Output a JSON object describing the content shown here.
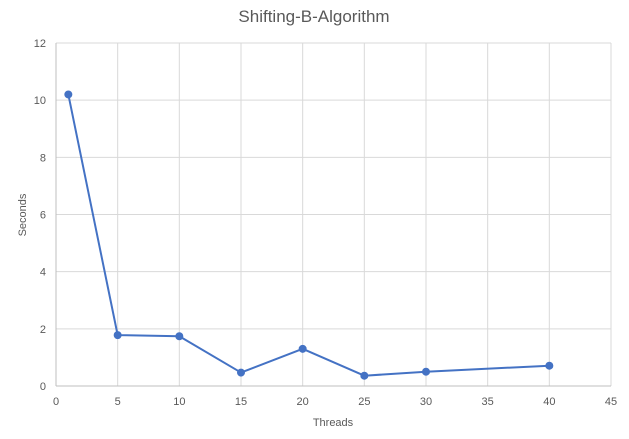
{
  "chart_data": {
    "type": "scatter",
    "title": "Shifting-B-Algorithm",
    "xlabel": "Threads",
    "ylabel": "Seconds",
    "xlim": [
      0,
      45
    ],
    "ylim": [
      0,
      12
    ],
    "x_ticks": [
      0,
      5,
      10,
      15,
      20,
      25,
      30,
      35,
      40,
      45
    ],
    "y_ticks": [
      0,
      2,
      4,
      6,
      8,
      10,
      12
    ],
    "grid": true,
    "legend": "none",
    "line_style": "straight lines with markers",
    "series": [
      {
        "color": "#4472c4",
        "x": [
          1,
          5,
          10,
          15,
          20,
          25,
          30,
          40
        ],
        "y": [
          10.2,
          1.78,
          1.74,
          0.47,
          1.3,
          0.36,
          0.5,
          0.71
        ]
      }
    ]
  }
}
